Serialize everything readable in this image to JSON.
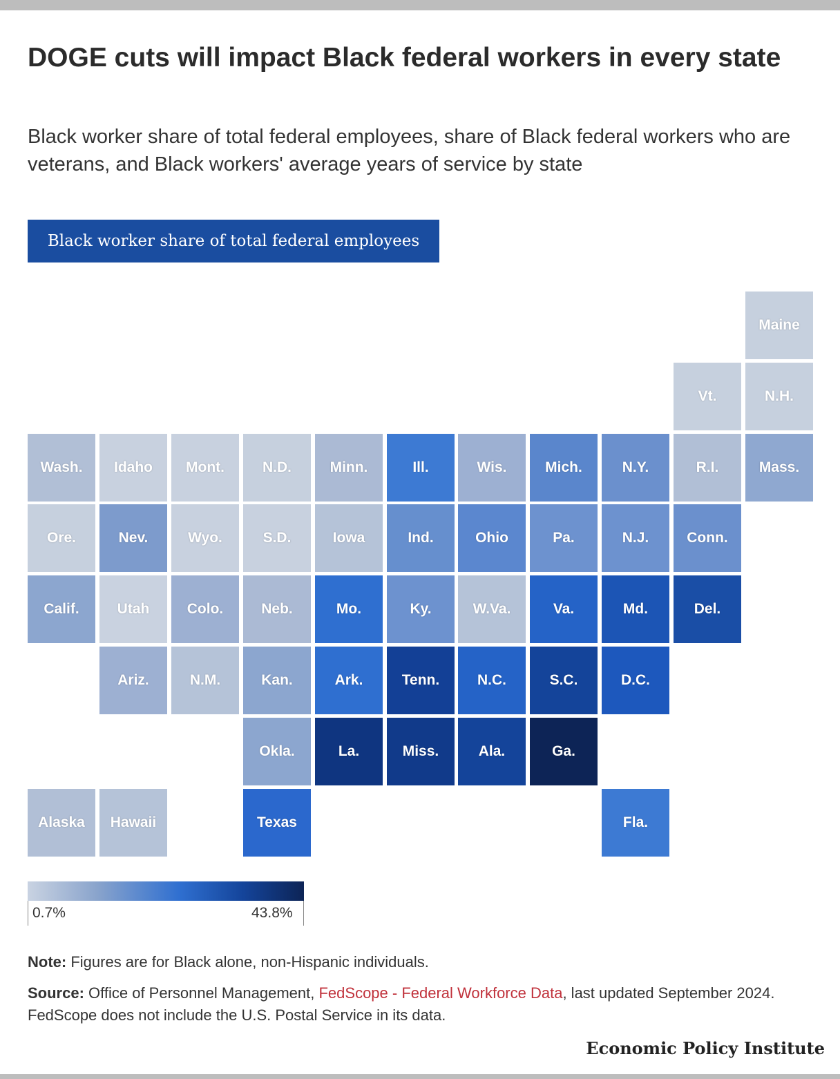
{
  "title": "DOGE cuts will impact Black federal workers in every state",
  "subtitle": "Black worker share of total federal employees, share of Black federal workers who are veterans, and Black workers' average years of service by state",
  "tab_label": "Black worker share of total federal employees",
  "map": {
    "tiles": [
      {
        "label": "Maine",
        "row": 0,
        "col": 10,
        "color": "#c6d0de"
      },
      {
        "label": "Vt.",
        "row": 1,
        "col": 9,
        "color": "#c6d0de"
      },
      {
        "label": "N.H.",
        "row": 1,
        "col": 10,
        "color": "#c6d0de"
      },
      {
        "label": "Wash.",
        "row": 2,
        "col": 0,
        "color": "#b1bfd6"
      },
      {
        "label": "Idaho",
        "row": 2,
        "col": 1,
        "color": "#c8d1df"
      },
      {
        "label": "Mont.",
        "row": 2,
        "col": 2,
        "color": "#c8d1df"
      },
      {
        "label": "N.D.",
        "row": 2,
        "col": 3,
        "color": "#c6d0de"
      },
      {
        "label": "Minn.",
        "row": 2,
        "col": 4,
        "color": "#abbad4"
      },
      {
        "label": "Ill.",
        "row": 2,
        "col": 5,
        "color": "#3d7ad3"
      },
      {
        "label": "Wis.",
        "row": 2,
        "col": 6,
        "color": "#9db0d2"
      },
      {
        "label": "Mich.",
        "row": 2,
        "col": 7,
        "color": "#5a86cc"
      },
      {
        "label": "N.Y.",
        "row": 2,
        "col": 8,
        "color": "#6b90cd"
      },
      {
        "label": "R.I.",
        "row": 2,
        "col": 9,
        "color": "#b1bfd6"
      },
      {
        "label": "Mass.",
        "row": 2,
        "col": 10,
        "color": "#8fa8d0"
      },
      {
        "label": "Ore.",
        "row": 3,
        "col": 0,
        "color": "#c6d0de"
      },
      {
        "label": "Nev.",
        "row": 3,
        "col": 1,
        "color": "#7d9bcc"
      },
      {
        "label": "Wyo.",
        "row": 3,
        "col": 2,
        "color": "#c8d1df"
      },
      {
        "label": "S.D.",
        "row": 3,
        "col": 3,
        "color": "#c8d1df"
      },
      {
        "label": "Iowa",
        "row": 3,
        "col": 4,
        "color": "#b5c3d8"
      },
      {
        "label": "Ind.",
        "row": 3,
        "col": 5,
        "color": "#668fce"
      },
      {
        "label": "Ohio",
        "row": 3,
        "col": 6,
        "color": "#5b87cf"
      },
      {
        "label": "Pa.",
        "row": 3,
        "col": 7,
        "color": "#6d92cf"
      },
      {
        "label": "N.J.",
        "row": 3,
        "col": 8,
        "color": "#6d92cf"
      },
      {
        "label": "Conn.",
        "row": 3,
        "col": 9,
        "color": "#6b90cd"
      },
      {
        "label": "Calif.",
        "row": 4,
        "col": 0,
        "color": "#8ca6cf"
      },
      {
        "label": "Utah",
        "row": 4,
        "col": 1,
        "color": "#c9d2e0"
      },
      {
        "label": "Colo.",
        "row": 4,
        "col": 2,
        "color": "#9db0d2"
      },
      {
        "label": "Neb.",
        "row": 4,
        "col": 3,
        "color": "#abbad4"
      },
      {
        "label": "Mo.",
        "row": 4,
        "col": 4,
        "color": "#2f6fd0"
      },
      {
        "label": "Ky.",
        "row": 4,
        "col": 5,
        "color": "#6d92cf"
      },
      {
        "label": "W.Va.",
        "row": 4,
        "col": 6,
        "color": "#b5c3d8"
      },
      {
        "label": "Va.",
        "row": 4,
        "col": 7,
        "color": "#2563c7"
      },
      {
        "label": "Md.",
        "row": 4,
        "col": 8,
        "color": "#1c55b5"
      },
      {
        "label": "Del.",
        "row": 4,
        "col": 9,
        "color": "#1a4ea6"
      },
      {
        "label": "Ariz.",
        "row": 5,
        "col": 1,
        "color": "#9db0d2"
      },
      {
        "label": "N.M.",
        "row": 5,
        "col": 2,
        "color": "#b5c3d8"
      },
      {
        "label": "Kan.",
        "row": 5,
        "col": 3,
        "color": "#8ca6cf"
      },
      {
        "label": "Ark.",
        "row": 5,
        "col": 4,
        "color": "#2f6fd0"
      },
      {
        "label": "Tenn.",
        "row": 5,
        "col": 5,
        "color": "#134096"
      },
      {
        "label": "N.C.",
        "row": 5,
        "col": 6,
        "color": "#2563c7"
      },
      {
        "label": "S.C.",
        "row": 5,
        "col": 7,
        "color": "#14449a"
      },
      {
        "label": "D.C.",
        "row": 5,
        "col": 8,
        "color": "#1d58bd"
      },
      {
        "label": "Okla.",
        "row": 6,
        "col": 3,
        "color": "#8ca6cf"
      },
      {
        "label": "La.",
        "row": 6,
        "col": 4,
        "color": "#0f3580"
      },
      {
        "label": "Miss.",
        "row": 6,
        "col": 5,
        "color": "#113a8a"
      },
      {
        "label": "Ala.",
        "row": 6,
        "col": 6,
        "color": "#14449a"
      },
      {
        "label": "Ga.",
        "row": 6,
        "col": 7,
        "color": "#0d2456"
      },
      {
        "label": "Alaska",
        "row": 7,
        "col": 0,
        "color": "#b1bfd6"
      },
      {
        "label": "Hawaii",
        "row": 7,
        "col": 1,
        "color": "#b5c3d8"
      },
      {
        "label": "Texas",
        "row": 7,
        "col": 3,
        "color": "#2b68cd"
      },
      {
        "label": "Fla.",
        "row": 7,
        "col": 8,
        "color": "#3d7ad3"
      }
    ]
  },
  "legend": {
    "min_label": "0.7%",
    "max_label": "43.8%",
    "min_color": "#c9d3e2",
    "max_color": "#0d2456"
  },
  "note": {
    "label": "Note:",
    "text": " Figures are for Black alone, non-Hispanic individuals."
  },
  "source": {
    "label": "Source:",
    "text_before": " Office of Personnel Management, ",
    "link_text": "FedScope - Federal Workforce Data",
    "text_after": ", last updated September 2024. FedScope does not include the U.S. Postal Service in its data."
  },
  "brand": "Economic Policy Institute"
}
